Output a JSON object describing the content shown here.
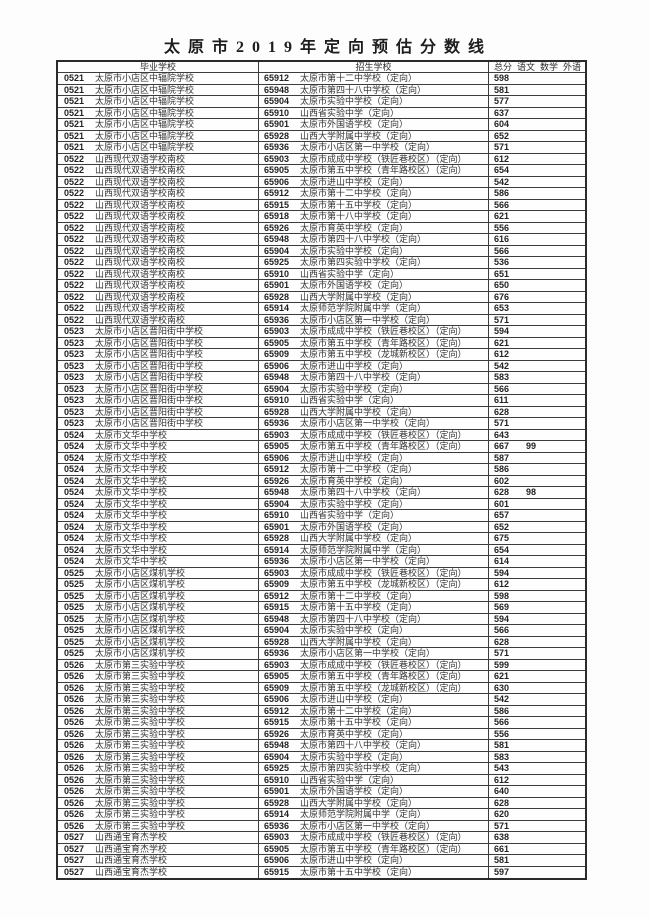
{
  "title": "太 原 市 2 0 1 9 年 定 向 预 估 分 数 线",
  "table": {
    "headers": {
      "graduation_school": "毕业学校",
      "admission_school": "招生学校",
      "score_cols": {
        "total": "总分",
        "chinese": "语文",
        "math": "数学",
        "foreign": "外语"
      }
    },
    "row_columns": [
      "grad_code",
      "grad_school",
      "admit_code",
      "admit_school",
      "total_score",
      "chinese_score"
    ],
    "rows": [
      [
        "0521",
        "太原市小店区中辐院学校",
        "65912",
        "太原市第十二中学校（定向）",
        "598",
        ""
      ],
      [
        "0521",
        "太原市小店区中辐院学校",
        "65948",
        "太原市第四十八中学校（定向）",
        "581",
        ""
      ],
      [
        "0521",
        "太原市小店区中辐院学校",
        "65904",
        "太原市实验中学校（定向）",
        "577",
        ""
      ],
      [
        "0521",
        "太原市小店区中辐院学校",
        "65910",
        "山西省实验中学（定向）",
        "637",
        ""
      ],
      [
        "0521",
        "太原市小店区中辐院学校",
        "65901",
        "太原市外国语学校（定向）",
        "604",
        ""
      ],
      [
        "0521",
        "太原市小店区中辐院学校",
        "65928",
        "山西大学附属中学校（定向）",
        "652",
        ""
      ],
      [
        "0521",
        "太原市小店区中辐院学校",
        "65936",
        "太原市小店区第一中学校（定向）",
        "571",
        ""
      ],
      [
        "0522",
        "山西现代双语学校南校",
        "65903",
        "太原市成成中学校（铁匠巷校区）（定向）",
        "612",
        ""
      ],
      [
        "0522",
        "山西现代双语学校南校",
        "65905",
        "太原市第五中学校（青年路校区）（定向）",
        "654",
        ""
      ],
      [
        "0522",
        "山西现代双语学校南校",
        "65906",
        "太原市进山中学校（定向）",
        "542",
        ""
      ],
      [
        "0522",
        "山西现代双语学校南校",
        "65912",
        "太原市第十二中学校（定向）",
        "586",
        ""
      ],
      [
        "0522",
        "山西现代双语学校南校",
        "65915",
        "太原市第十五中学校（定向）",
        "566",
        ""
      ],
      [
        "0522",
        "山西现代双语学校南校",
        "65918",
        "太原市第十八中学校（定向）",
        "621",
        ""
      ],
      [
        "0522",
        "山西现代双语学校南校",
        "65926",
        "太原市育英中学校（定向）",
        "556",
        ""
      ],
      [
        "0522",
        "山西现代双语学校南校",
        "65948",
        "太原市第四十八中学校（定向）",
        "616",
        ""
      ],
      [
        "0522",
        "山西现代双语学校南校",
        "65904",
        "太原市实验中学校（定向）",
        "566",
        ""
      ],
      [
        "0522",
        "山西现代双语学校南校",
        "65925",
        "太原市第四实验中学校（定向）",
        "536",
        ""
      ],
      [
        "0522",
        "山西现代双语学校南校",
        "65910",
        "山西省实验中学（定向）",
        "651",
        ""
      ],
      [
        "0522",
        "山西现代双语学校南校",
        "65901",
        "太原市外国语学校（定向）",
        "650",
        ""
      ],
      [
        "0522",
        "山西现代双语学校南校",
        "65928",
        "山西大学附属中学校（定向）",
        "676",
        ""
      ],
      [
        "0522",
        "山西现代双语学校南校",
        "65914",
        "太原师范学院附属中学（定向）",
        "653",
        ""
      ],
      [
        "0522",
        "山西现代双语学校南校",
        "65936",
        "太原市小店区第一中学校（定向）",
        "571",
        ""
      ],
      [
        "0523",
        "太原市小店区晋阳街中学校",
        "65903",
        "太原市成成中学校（铁匠巷校区）（定向）",
        "594",
        ""
      ],
      [
        "0523",
        "太原市小店区晋阳街中学校",
        "65905",
        "太原市第五中学校（青年路校区）（定向）",
        "621",
        ""
      ],
      [
        "0523",
        "太原市小店区晋阳街中学校",
        "65909",
        "太原市第五中学校（龙城新校区）（定向）",
        "612",
        ""
      ],
      [
        "0523",
        "太原市小店区晋阳街中学校",
        "65906",
        "太原市进山中学校（定向）",
        "542",
        ""
      ],
      [
        "0523",
        "太原市小店区晋阳街中学校",
        "65948",
        "太原市第四十八中学校（定向）",
        "583",
        ""
      ],
      [
        "0523",
        "太原市小店区晋阳街中学校",
        "65904",
        "太原市实验中学校（定向）",
        "566",
        ""
      ],
      [
        "0523",
        "太原市小店区晋阳街中学校",
        "65910",
        "山西省实验中学（定向）",
        "611",
        ""
      ],
      [
        "0523",
        "太原市小店区晋阳街中学校",
        "65928",
        "山西大学附属中学校（定向）",
        "628",
        ""
      ],
      [
        "0523",
        "太原市小店区晋阳街中学校",
        "65936",
        "太原市小店区第一中学校（定向）",
        "571",
        ""
      ],
      [
        "0524",
        "太原市文华中学校",
        "65903",
        "太原市成成中学校（铁匠巷校区）（定向）",
        "643",
        ""
      ],
      [
        "0524",
        "太原市文华中学校",
        "65905",
        "太原市第五中学校（青年路校区）（定向）",
        "667",
        "99"
      ],
      [
        "0524",
        "太原市文华中学校",
        "65906",
        "太原市进山中学校（定向）",
        "587",
        ""
      ],
      [
        "0524",
        "太原市文华中学校",
        "65912",
        "太原市第十二中学校（定向）",
        "586",
        ""
      ],
      [
        "0524",
        "太原市文华中学校",
        "65926",
        "太原市育英中学校（定向）",
        "602",
        ""
      ],
      [
        "0524",
        "太原市文华中学校",
        "65948",
        "太原市第四十八中学校（定向）",
        "628",
        "98"
      ],
      [
        "0524",
        "太原市文华中学校",
        "65904",
        "太原市实验中学校（定向）",
        "601",
        ""
      ],
      [
        "0524",
        "太原市文华中学校",
        "65910",
        "山西省实验中学（定向）",
        "657",
        ""
      ],
      [
        "0524",
        "太原市文华中学校",
        "65901",
        "太原市外国语学校（定向）",
        "652",
        ""
      ],
      [
        "0524",
        "太原市文华中学校",
        "65928",
        "山西大学附属中学校（定向）",
        "675",
        ""
      ],
      [
        "0524",
        "太原市文华中学校",
        "65914",
        "太原师范学院附属中学（定向）",
        "654",
        ""
      ],
      [
        "0524",
        "太原市文华中学校",
        "65936",
        "太原市小店区第一中学校（定向）",
        "614",
        ""
      ],
      [
        "0525",
        "太原市小店区煤机学校",
        "65903",
        "太原市成成中学校（铁匠巷校区）（定向）",
        "594",
        ""
      ],
      [
        "0525",
        "太原市小店区煤机学校",
        "65909",
        "太原市第五中学校（龙城新校区）（定向）",
        "612",
        ""
      ],
      [
        "0525",
        "太原市小店区煤机学校",
        "65912",
        "太原市第十二中学校（定向）",
        "598",
        ""
      ],
      [
        "0525",
        "太原市小店区煤机学校",
        "65915",
        "太原市第十五中学校（定向）",
        "569",
        ""
      ],
      [
        "0525",
        "太原市小店区煤机学校",
        "65948",
        "太原市第四十八中学校（定向）",
        "594",
        ""
      ],
      [
        "0525",
        "太原市小店区煤机学校",
        "65904",
        "太原市实验中学校（定向）",
        "566",
        ""
      ],
      [
        "0525",
        "太原市小店区煤机学校",
        "65928",
        "山西大学附属中学校（定向）",
        "628",
        ""
      ],
      [
        "0525",
        "太原市小店区煤机学校",
        "65936",
        "太原市小店区第一中学校（定向）",
        "571",
        ""
      ],
      [
        "0526",
        "太原市第三实验中学校",
        "65903",
        "太原市成成中学校（铁匠巷校区）（定向）",
        "599",
        ""
      ],
      [
        "0526",
        "太原市第三实验中学校",
        "65905",
        "太原市第五中学校（青年路校区）（定向）",
        "621",
        ""
      ],
      [
        "0526",
        "太原市第三实验中学校",
        "65909",
        "太原市第五中学校（龙城新校区）（定向）",
        "630",
        ""
      ],
      [
        "0526",
        "太原市第三实验中学校",
        "65906",
        "太原市进山中学校（定向）",
        "542",
        ""
      ],
      [
        "0526",
        "太原市第三实验中学校",
        "65912",
        "太原市第十二中学校（定向）",
        "586",
        ""
      ],
      [
        "0526",
        "太原市第三实验中学校",
        "65915",
        "太原市第十五中学校（定向）",
        "566",
        ""
      ],
      [
        "0526",
        "太原市第三实验中学校",
        "65926",
        "太原市育英中学校（定向）",
        "556",
        ""
      ],
      [
        "0526",
        "太原市第三实验中学校",
        "65948",
        "太原市第四十八中学校（定向）",
        "581",
        ""
      ],
      [
        "0526",
        "太原市第三实验中学校",
        "65904",
        "太原市实验中学校（定向）",
        "583",
        ""
      ],
      [
        "0526",
        "太原市第三实验中学校",
        "65925",
        "太原市第四实验中学校（定向）",
        "543",
        ""
      ],
      [
        "0526",
        "太原市第三实验中学校",
        "65910",
        "山西省实验中学（定向）",
        "612",
        ""
      ],
      [
        "0526",
        "太原市第三实验中学校",
        "65901",
        "太原市外国语学校（定向）",
        "640",
        ""
      ],
      [
        "0526",
        "太原市第三实验中学校",
        "65928",
        "山西大学附属中学校（定向）",
        "628",
        ""
      ],
      [
        "0526",
        "太原市第三实验中学校",
        "65914",
        "太原师范学院附属中学（定向）",
        "620",
        ""
      ],
      [
        "0526",
        "太原市第三实验中学校",
        "65936",
        "太原市小店区第一中学校（定向）",
        "571",
        ""
      ],
      [
        "0527",
        "山西通宝育杰学校",
        "65903",
        "太原市成成中学校（铁匠巷校区）（定向）",
        "638",
        ""
      ],
      [
        "0527",
        "山西通宝育杰学校",
        "65905",
        "太原市第五中学校（青年路校区）（定向）",
        "661",
        ""
      ],
      [
        "0527",
        "山西通宝育杰学校",
        "65906",
        "太原市进山中学校（定向）",
        "581",
        ""
      ],
      [
        "0527",
        "山西通宝育杰学校",
        "65915",
        "太原市第十五中学校（定向）",
        "597",
        ""
      ]
    ]
  }
}
